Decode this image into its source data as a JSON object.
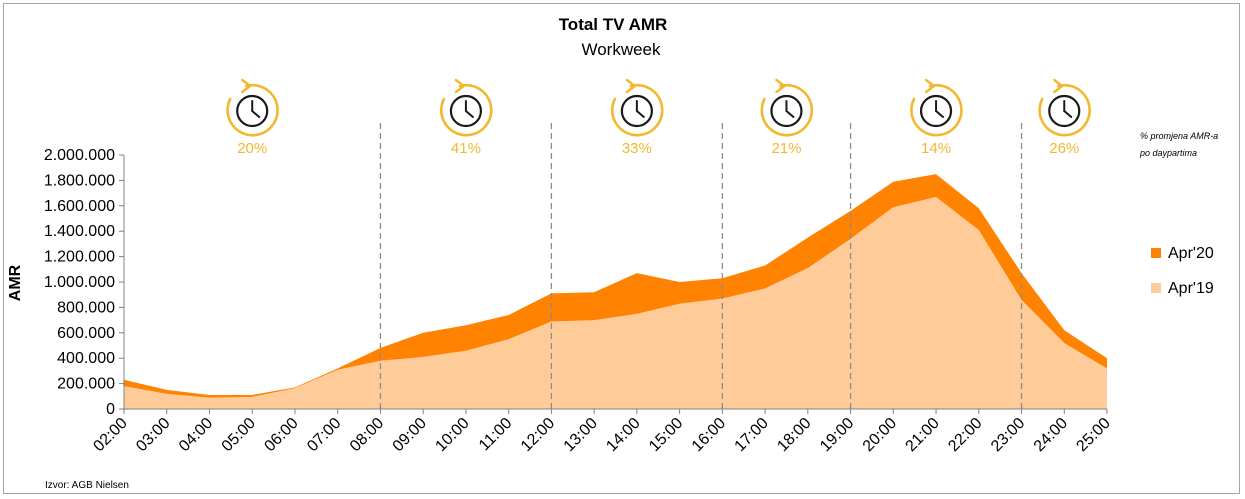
{
  "chart_data": {
    "type": "area",
    "title": "Total TV AMR",
    "subtitle": "Workweek",
    "ylabel": "AMR",
    "xlabel": "",
    "ylim": [
      0,
      2000000
    ],
    "ytick_values": [
      0,
      200000,
      400000,
      600000,
      800000,
      1000000,
      1200000,
      1400000,
      1600000,
      1800000,
      2000000
    ],
    "ytick_labels": [
      "0",
      "200.000",
      "400.000",
      "600.000",
      "800.000",
      "1.000.000",
      "1.200.000",
      "1.400.000",
      "1.600.000",
      "1.800.000",
      "2.000.000"
    ],
    "categories": [
      "02:00",
      "03:00",
      "04:00",
      "05:00",
      "06:00",
      "07:00",
      "08:00",
      "09:00",
      "10:00",
      "11:00",
      "12:00",
      "13:00",
      "14:00",
      "15:00",
      "16:00",
      "17:00",
      "18:00",
      "19:00",
      "20:00",
      "21:00",
      "22:00",
      "23:00",
      "24:00",
      "25:00"
    ],
    "series": [
      {
        "name": "Apr'20",
        "color": "#ff8200",
        "values": [
          230000,
          150000,
          110000,
          110000,
          170000,
          320000,
          480000,
          600000,
          660000,
          740000,
          910000,
          920000,
          1070000,
          1000000,
          1030000,
          1130000,
          1350000,
          1560000,
          1790000,
          1850000,
          1580000,
          1070000,
          620000,
          400000
        ]
      },
      {
        "name": "Apr'19",
        "color": "#ffcc99",
        "values": [
          180000,
          120000,
          90000,
          95000,
          165000,
          310000,
          380000,
          410000,
          460000,
          550000,
          690000,
          700000,
          750000,
          830000,
          870000,
          950000,
          1110000,
          1340000,
          1590000,
          1670000,
          1410000,
          860000,
          520000,
          320000
        ]
      }
    ],
    "dayparts": [
      {
        "percent": "20%"
      },
      {
        "percent": "41%"
      },
      {
        "percent": "33%"
      },
      {
        "percent": "21%"
      },
      {
        "percent": "14%"
      },
      {
        "percent": "26%"
      }
    ],
    "daypart_boundaries": [
      "08:00",
      "12:00",
      "16:00",
      "19:00",
      "23:00"
    ],
    "legend_position": "right",
    "grid": false,
    "note_line1": "% promjena AMR-a",
    "note_line2": "po daypartima",
    "source": "Izvor: AGB Nielsen",
    "accent_color": "#f2b82e"
  }
}
